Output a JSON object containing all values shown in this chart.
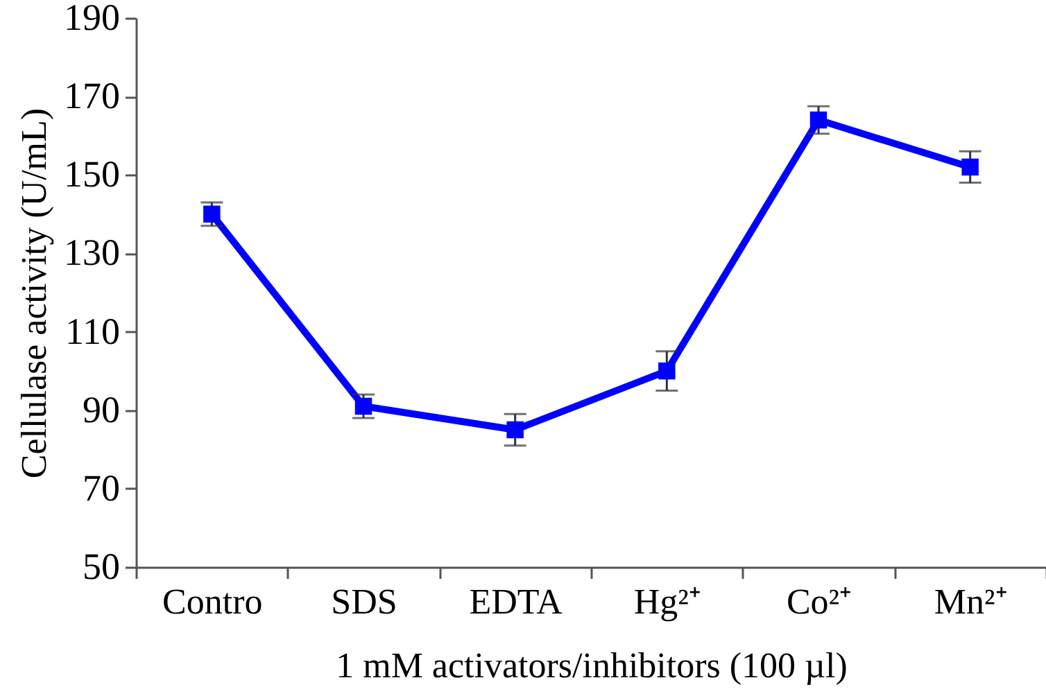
{
  "chart_data": {
    "type": "line",
    "xlabel": "1 mM activators/inhibitors (100 µl)",
    "ylabel": "Cellulase activity (U/mL)",
    "categories": [
      "Contro",
      "SDS",
      "EDTA",
      "Hg²⁺",
      "Co²⁺",
      "Mn²⁺"
    ],
    "series": [
      {
        "color": "#0000ff",
        "values": [
          140,
          91,
          85,
          100,
          164,
          152
        ],
        "errors": [
          3,
          3,
          4,
          5,
          3.5,
          4
        ]
      }
    ],
    "ylim": [
      50,
      190
    ],
    "yticks": [
      50,
      70,
      90,
      110,
      130,
      150,
      170,
      190
    ],
    "marker": "square",
    "line_style": "solid",
    "grid": false
  }
}
